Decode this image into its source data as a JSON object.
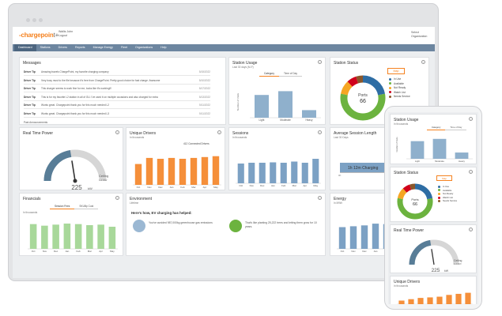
{
  "app": {
    "logo_main": "-chargepoin",
    "logo_tail": "t+",
    "account_name": "Wallis John",
    "account_role": "Logout",
    "org_label": "Select",
    "org_value": "Organization"
  },
  "nav": [
    "Dashboard",
    "Stations",
    "Drivers",
    "Reports",
    "Manage Energy",
    "Fleet",
    "Organizations",
    "Help"
  ],
  "messages": {
    "title": "Messages",
    "tip": "Driver Tip",
    "items": [
      {
        "text": "Amazing travels ChargePoint, my favorite charging company",
        "date": "5/15/2022"
      },
      {
        "text": "Very busy must to the file because it's free from ChargePoint. Pretty good choice for fast charge. Awesome",
        "date": "5/10/2022"
      },
      {
        "text": "This charger seems to work fine for me, looks like it's working!!!",
        "date": "5/17/2022"
      },
      {
        "text": "This is for my favorite L2 station in all of GU. I've used it on multiple occasions and also charged for extra",
        "date": "5/13/2022"
      },
      {
        "text": "Works great. Chargepoint thank you for this much needed L2",
        "date": "5/11/2022"
      },
      {
        "text": "Works great. Chargepoint thank you for this much needed L3",
        "date": "5/11/2022"
      }
    ],
    "footer": "Past Announcements"
  },
  "station_usage": {
    "title": "Station Usage",
    "sub": "Last 30 days (M-F)",
    "tabs": [
      "Category",
      "Time of Day"
    ],
    "ylabel": "Number of Visits"
  },
  "station_status": {
    "title": "Station Status",
    "button": "Map",
    "center_label": "Ports",
    "center_value": "66",
    "legend": [
      {
        "label": "In Use",
        "color": "#2e6da4"
      },
      {
        "label": "Available",
        "color": "#6cb33f"
      },
      {
        "label": "Not Ready",
        "color": "#f5a623"
      },
      {
        "label": "Watch List",
        "color": "#d0021b"
      },
      {
        "label": "Needs Service",
        "color": "#8b572a"
      }
    ]
  },
  "real_time_power": {
    "title": "Real Time Power",
    "value": "225",
    "unit": "kW",
    "ceiling": "Ceiling",
    "ceiling_value": "1.2 MW",
    "level": 0.45
  },
  "unique_drivers": {
    "title": "Unique Drivers",
    "sub": "In thousands",
    "caption": "412 Connected Drivers"
  },
  "sessions": {
    "title": "Sessions",
    "sub": "In thousands"
  },
  "avg_session": {
    "title": "Average Session Length",
    "sub": "Last 30 Days",
    "value": "1h 12m Charging",
    "axis_start": "0h",
    "axis_end": "4h"
  },
  "financials": {
    "title": "Financials",
    "sub": "In thousands",
    "tabs": [
      "Session Fees",
      "SKUBp Cost"
    ]
  },
  "environment": {
    "title": "Environment",
    "sub": "Lifetime",
    "heading": "Here's how, EV charging has helped:",
    "fact1": "You've avoided 987,000kg greenhouse gas emissions",
    "fact2": "That's like planting 25,222 trees and letting them grow for 10 years."
  },
  "energy": {
    "title": "Energy",
    "sub": "In MWh"
  },
  "mobile": {
    "station_usage": "Station Usage",
    "usage_sub": "In thousands",
    "usage_tabs": [
      "Category",
      "Time of Day"
    ],
    "usage_ylabel": "Number of Visits",
    "station_status": "Station Status",
    "map_button": "Map",
    "ports_label": "Ports",
    "ports_value": "66",
    "legend": [
      "In Use",
      "Available",
      "Not Ready",
      "Watch List",
      "Needs Service"
    ],
    "real_time_power": "Real Time Power",
    "power_value": "225",
    "power_unit": "kW",
    "ceiling": "Ceiling",
    "ceiling_value": "1.2 MW",
    "unique_drivers": "Unique Drivers",
    "drivers_sub": "In thousands"
  },
  "chart_data": [
    {
      "id": "station_usage",
      "type": "bar",
      "categories": [
        "Light",
        "Moderate",
        "Heavy"
      ],
      "values": [
        60,
        70,
        20
      ],
      "ylim": [
        0,
        100
      ],
      "color": "#8fb0cc"
    },
    {
      "id": "unique_drivers",
      "type": "bar",
      "categories": [
        "Oct",
        "Nov",
        "Dec",
        "Jan",
        "Feb",
        "Mar",
        "Apr",
        "May"
      ],
      "values": [
        48,
        62,
        60,
        62,
        60,
        62,
        64,
        66
      ],
      "ylim": [
        0,
        80
      ],
      "color": "#f58f3a"
    },
    {
      "id": "sessions",
      "type": "bar",
      "categories": [
        "Oct",
        "Nov",
        "Dec",
        "Jan",
        "Feb",
        "Mar",
        "Apr",
        "May"
      ],
      "values": [
        50,
        52,
        52,
        53,
        52,
        55,
        52,
        62
      ],
      "ylim": [
        0,
        80
      ],
      "color": "#7ca1c4"
    },
    {
      "id": "financials",
      "type": "bar",
      "categories": [
        "Oct",
        "Nov",
        "Dec",
        "Jan",
        "Feb",
        "Mar",
        "Apr",
        "May"
      ],
      "values": [
        47,
        44,
        46,
        48,
        47,
        45,
        46,
        42
      ],
      "ylim": [
        0,
        60
      ],
      "color": "#a8d89a"
    },
    {
      "id": "energy",
      "type": "bar",
      "categories": [
        "Oct",
        "Nov",
        "Dec",
        "Jan",
        "Feb",
        "Mar",
        "Apr",
        "May"
      ],
      "values": [
        50,
        52,
        54,
        58,
        57,
        63,
        61,
        64
      ],
      "ylim": [
        0,
        80
      ],
      "color": "#7ca1c4"
    },
    {
      "id": "station_status",
      "type": "pie",
      "categories": [
        "In Use",
        "Available",
        "Not Ready",
        "Watch List",
        "Needs Service"
      ],
      "values": [
        22,
        56,
        10,
        7,
        5
      ]
    },
    {
      "id": "mobile_usage",
      "type": "bar",
      "categories": [
        "Light",
        "Moderate",
        "Heavy"
      ],
      "values": [
        62,
        70,
        22
      ],
      "ylim": [
        0,
        100
      ],
      "color": "#8fb0cc"
    },
    {
      "id": "mobile_drivers",
      "type": "bar",
      "categories": [
        "Oct",
        "Nov",
        "Dec",
        "Jan",
        "Feb",
        "Mar",
        "Apr",
        "May"
      ],
      "values": [
        20,
        28,
        35,
        38,
        42,
        52,
        58,
        64
      ],
      "ylim": [
        0,
        80
      ],
      "color": "#f58f3a"
    }
  ]
}
